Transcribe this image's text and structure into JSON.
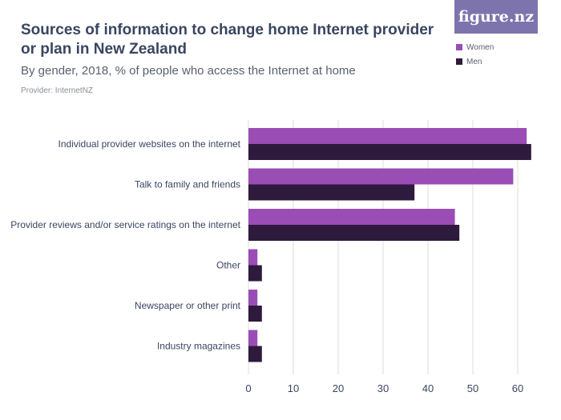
{
  "header": {
    "title": "Sources of information to change home Internet provider or plan in New Zealand",
    "subtitle": "By gender, 2018, % of people who access the Internet at home",
    "provider": "Provider: InternetNZ",
    "logo_text": "figure.nz"
  },
  "colors": {
    "women": "#9a4db5",
    "men": "#2e1a3d",
    "grid": "#dcdcdc",
    "logo_bg": "#7e74ad"
  },
  "chart_data": {
    "type": "bar",
    "orientation": "horizontal",
    "title": "Sources of information to change home Internet provider or plan in New Zealand",
    "subtitle": "By gender, 2018, % of people who access the Internet at home",
    "categories": [
      "Individual provider websites on the internet",
      "Talk to family and friends",
      "Provider reviews and/or service ratings on the internet",
      "Other",
      "Newspaper or other print",
      "Industry magazines"
    ],
    "series": [
      {
        "name": "Women",
        "values": [
          62,
          59,
          46,
          2,
          2,
          2
        ]
      },
      {
        "name": "Men",
        "values": [
          63,
          37,
          47,
          3,
          3,
          3
        ]
      }
    ],
    "xlim": [
      0,
      65
    ],
    "xticks": [
      0,
      10,
      20,
      30,
      40,
      50,
      60
    ],
    "grid": true,
    "legend_position": "top-right"
  }
}
